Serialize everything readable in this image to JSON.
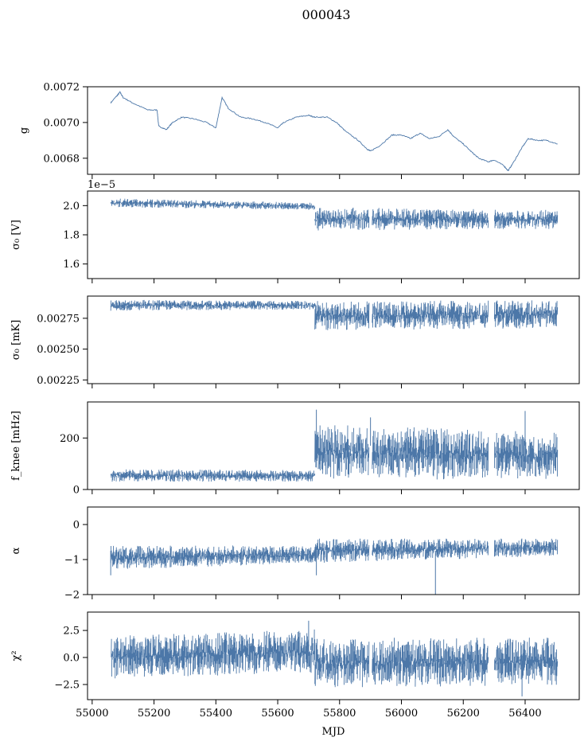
{
  "title": "000043",
  "xlabel": "MJD",
  "colors": {
    "series": "#4c77a8",
    "axis": "#000000"
  },
  "chart_data": [
    {
      "type": "line",
      "ylabel": "g",
      "ylim": [
        0.00671,
        0.0072
      ],
      "yticks": [
        0.0068,
        0.007,
        0.0072
      ],
      "ytick_labels": [
        "0.0068",
        "0.0070",
        "0.0072"
      ],
      "x_range": [
        55060,
        56505
      ],
      "x": [
        55060,
        55080,
        55090,
        55100,
        55130,
        55180,
        55210,
        55215,
        55240,
        55260,
        55290,
        55330,
        55370,
        55400,
        55420,
        55440,
        55480,
        55520,
        55560,
        55600,
        55620,
        55660,
        55700,
        55720,
        55760,
        55790,
        55820,
        55860,
        55890,
        55900,
        55930,
        55970,
        56000,
        56030,
        56060,
        56090,
        56120,
        56150,
        56170,
        56200,
        56230,
        56250,
        56280,
        56300,
        56330,
        56345,
        56360,
        56390,
        56410,
        56440,
        56470,
        56505
      ],
      "values": [
        0.00711,
        0.00715,
        0.00717,
        0.00714,
        0.00711,
        0.00707,
        0.00707,
        0.00698,
        0.00696,
        0.007,
        0.00703,
        0.00702,
        0.007,
        0.00697,
        0.00714,
        0.00708,
        0.00703,
        0.00702,
        0.007,
        0.00697,
        0.007,
        0.00703,
        0.00704,
        0.00703,
        0.00703,
        0.007,
        0.00695,
        0.0069,
        0.00685,
        0.00684,
        0.00687,
        0.00693,
        0.00693,
        0.00691,
        0.00694,
        0.00691,
        0.00692,
        0.00696,
        0.00692,
        0.00688,
        0.00683,
        0.0068,
        0.00678,
        0.00679,
        0.00676,
        0.00673,
        0.00677,
        0.00686,
        0.00691,
        0.0069,
        0.0069,
        0.00688
      ],
      "noise": 6e-06
    },
    {
      "type": "line",
      "ylabel": "σ₀ [V]",
      "offset_text": "1e−5",
      "ylim": [
        1.5,
        2.1
      ],
      "yticks": [
        1.6,
        1.8,
        2.0
      ],
      "ytick_labels": [
        "1.6",
        "1.8",
        "2.0"
      ],
      "x_range": [
        55060,
        56505
      ],
      "segments": [
        {
          "x": [
            55060,
            55720
          ],
          "lo": [
            1.99,
            1.97
          ],
          "hi": [
            2.05,
            2.02
          ]
        },
        {
          "x": [
            55720,
            56505
          ],
          "lo": [
            1.83,
            1.84
          ],
          "hi": [
            1.99,
            1.97
          ]
        }
      ],
      "gaps": [
        [
          55895,
          55905
        ],
        [
          56280,
          56300
        ]
      ]
    },
    {
      "type": "line",
      "ylabel": "σ₀ [mK]",
      "ylim": [
        0.00222,
        0.00293
      ],
      "yticks": [
        0.00225,
        0.0025,
        0.00275
      ],
      "ytick_labels": [
        "0.00225",
        "0.00250",
        "0.00275"
      ],
      "x_range": [
        55060,
        56505
      ],
      "segments": [
        {
          "x": [
            55060,
            55720
          ],
          "lo": [
            0.00281,
            0.00282
          ],
          "hi": [
            0.0029,
            0.00289
          ]
        },
        {
          "x": [
            55720,
            56505
          ],
          "lo": [
            0.00265,
            0.00267
          ],
          "hi": [
            0.00289,
            0.0029
          ]
        }
      ],
      "gaps": [
        [
          55895,
          55905
        ],
        [
          56280,
          56300
        ]
      ]
    },
    {
      "type": "line",
      "ylabel": "f_knee [mHz]",
      "ylim": [
        0,
        340
      ],
      "yticks": [
        0,
        200
      ],
      "ytick_labels": [
        "0",
        "200"
      ],
      "x_range": [
        55060,
        56505
      ],
      "segments": [
        {
          "x": [
            55060,
            55720
          ],
          "lo": [
            30,
            30
          ],
          "hi": [
            80,
            75
          ]
        },
        {
          "x": [
            55720,
            56505
          ],
          "lo": [
            35,
            40
          ],
          "hi": [
            260,
            220
          ]
        }
      ],
      "spikes": [
        [
          55725,
          310
        ],
        [
          55900,
          280
        ],
        [
          56400,
          305
        ]
      ],
      "gaps": [
        [
          55895,
          55905
        ],
        [
          56280,
          56300
        ]
      ]
    },
    {
      "type": "line",
      "ylabel": "α",
      "ylim": [
        -2,
        0.5
      ],
      "yticks": [
        -2,
        -1,
        0
      ],
      "ytick_labels": [
        "−2",
        "−1",
        "0"
      ],
      "x_range": [
        55060,
        56505
      ],
      "segments": [
        {
          "x": [
            55060,
            55720
          ],
          "lo": [
            -1.3,
            -1.1
          ],
          "hi": [
            -0.6,
            -0.6
          ]
        },
        {
          "x": [
            55720,
            56505
          ],
          "lo": [
            -1.1,
            -0.9
          ],
          "hi": [
            -0.4,
            -0.4
          ]
        }
      ],
      "spikes": [
        [
          55725,
          -1.45
        ],
        [
          56110,
          -2.0
        ],
        [
          55060,
          -1.45
        ]
      ],
      "gaps": [
        [
          55895,
          55905
        ],
        [
          56280,
          56300
        ]
      ]
    },
    {
      "type": "line",
      "ylabel": "χ²",
      "ylim": [
        -3.9,
        4.2
      ],
      "yticks": [
        -2.5,
        0.0,
        2.5
      ],
      "ytick_labels": [
        "−2.5",
        "0.0",
        "2.5"
      ],
      "x_range": [
        55060,
        56505
      ],
      "segments": [
        {
          "x": [
            55060,
            55720
          ],
          "lo": [
            -2.0,
            -1.5
          ],
          "hi": [
            2.0,
            2.6
          ]
        },
        {
          "x": [
            55720,
            56505
          ],
          "lo": [
            -2.8,
            -2.6
          ],
          "hi": [
            1.8,
            1.9
          ]
        }
      ],
      "spikes": [
        [
          55700,
          3.4
        ],
        [
          56390,
          -3.6
        ]
      ],
      "gaps": [
        [
          55895,
          55905
        ],
        [
          56280,
          56300
        ]
      ]
    }
  ],
  "x_axis": {
    "xlim": [
      54985,
      56575
    ],
    "ticks": [
      55000,
      55200,
      55400,
      55600,
      55800,
      56000,
      56200,
      56400
    ],
    "tick_labels": [
      "55000",
      "55200",
      "55400",
      "55600",
      "55800",
      "56000",
      "56200",
      "56400"
    ]
  }
}
